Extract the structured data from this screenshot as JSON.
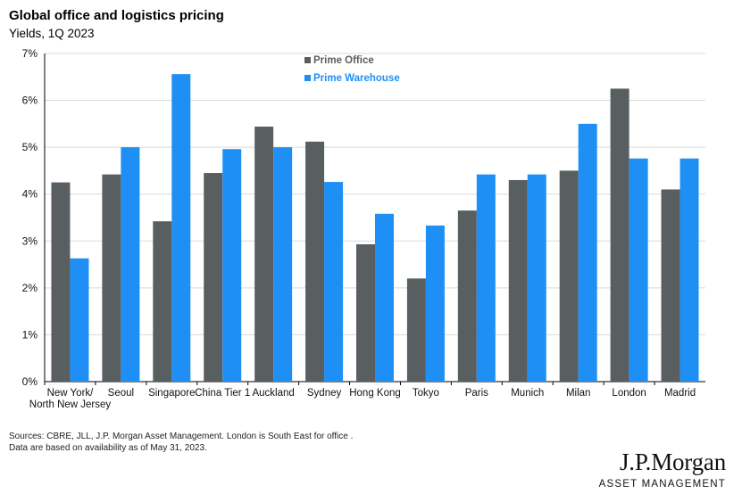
{
  "chart_data": {
    "type": "bar",
    "title": "Global office and logistics pricing",
    "subtitle": "Yields, 1Q 2023",
    "categories": [
      "New York/\nNorth New Jersey",
      "Seoul",
      "Singapore",
      "China Tier 1",
      "Auckland",
      "Sydney",
      "Hong Kong",
      "Tokyo",
      "Paris",
      "Munich",
      "Milan",
      "London",
      "Madrid"
    ],
    "series": [
      {
        "name": "Prime Office",
        "color": "#595e60",
        "values": [
          4.25,
          4.42,
          3.42,
          4.45,
          5.44,
          5.12,
          2.93,
          2.2,
          3.65,
          4.3,
          4.5,
          6.25,
          4.1
        ]
      },
      {
        "name": "Prime Warehouse",
        "color": "#1e90f5",
        "values": [
          2.63,
          5.0,
          6.56,
          4.96,
          5.0,
          4.26,
          3.58,
          3.33,
          4.42,
          4.42,
          5.5,
          4.76,
          4.76
        ]
      }
    ],
    "yticks": [
      "0%",
      "1%",
      "2%",
      "3%",
      "4%",
      "5%",
      "6%",
      "7%"
    ],
    "ylim": [
      0,
      7
    ],
    "legend": "top-center",
    "grid": true
  },
  "footer": {
    "sources_line1": "Sources: CBRE, JLL, J.P. Morgan Asset Management. London is South East for office .",
    "sources_line2": "Data are based on availability as of May 31, 2023."
  },
  "brand": {
    "name": "J.P.Morgan",
    "sub": "ASSET MANAGEMENT"
  }
}
